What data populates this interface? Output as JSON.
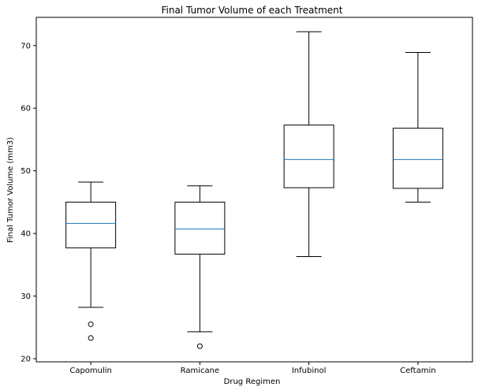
{
  "chart_data": {
    "type": "box",
    "title": "Final Tumor Volume of each Treatment",
    "xlabel": "Drug Regimen",
    "ylabel": "Final Tumor Volume (mm3)",
    "ylim": [
      19.5,
      74.5
    ],
    "yticks": [
      20,
      30,
      40,
      50,
      60,
      70
    ],
    "grid": false,
    "categories": [
      "Capomulin",
      "Ramicane",
      "Infubinol",
      "Ceftamin"
    ],
    "boxes": [
      {
        "category": "Capomulin",
        "whisker_low": 28.2,
        "q1": 37.7,
        "median": 41.6,
        "q3": 45.0,
        "whisker_high": 48.2,
        "outliers": [
          25.5,
          23.3
        ]
      },
      {
        "category": "Ramicane",
        "whisker_low": 24.3,
        "q1": 36.7,
        "median": 40.7,
        "q3": 45.0,
        "whisker_high": 47.6,
        "outliers": [
          22.0
        ]
      },
      {
        "category": "Infubinol",
        "whisker_low": 36.3,
        "q1": 47.3,
        "median": 51.8,
        "q3": 57.3,
        "whisker_high": 72.2,
        "outliers": []
      },
      {
        "category": "Ceftamin",
        "whisker_low": 45.0,
        "q1": 47.2,
        "median": 51.8,
        "q3": 56.8,
        "whisker_high": 68.9,
        "outliers": []
      }
    ],
    "colors": {
      "box": "#000000",
      "median": "#1f77b4"
    }
  }
}
